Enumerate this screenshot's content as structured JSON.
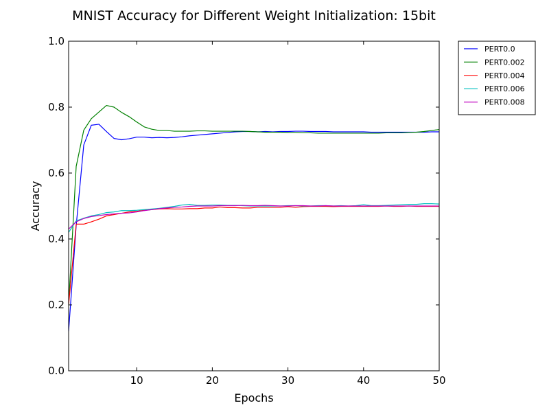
{
  "chart_data": {
    "type": "line",
    "title": "MNIST Accuracy for Different Weight Initialization: 15bit",
    "xlabel": "Epochs",
    "ylabel": "Accuracy",
    "xlim": [
      1,
      50
    ],
    "ylim": [
      0.0,
      1.0
    ],
    "xticks": [
      10,
      20,
      30,
      40,
      50
    ],
    "xtick_labels": [
      "10",
      "20",
      "30",
      "40",
      "50"
    ],
    "yticks": [
      0.0,
      0.2,
      0.4,
      0.6,
      0.8,
      1.0
    ],
    "ytick_labels": [
      "0.0",
      "0.2",
      "0.4",
      "0.6",
      "0.8",
      "1.0"
    ],
    "grid": false,
    "legend_position": "outside-top-right",
    "x": [
      1,
      2,
      3,
      4,
      5,
      6,
      7,
      8,
      9,
      10,
      11,
      12,
      13,
      14,
      15,
      16,
      17,
      18,
      19,
      20,
      21,
      22,
      23,
      24,
      25,
      26,
      27,
      28,
      29,
      30,
      31,
      32,
      33,
      34,
      35,
      36,
      37,
      38,
      39,
      40,
      41,
      42,
      43,
      44,
      45,
      46,
      47,
      48,
      49,
      50
    ],
    "series": [
      {
        "name": "PERT0.0",
        "color": "#0000ff",
        "values": [
          0.12,
          0.44,
          0.685,
          0.745,
          0.748,
          0.726,
          0.705,
          0.701,
          0.704,
          0.709,
          0.709,
          0.707,
          0.708,
          0.707,
          0.708,
          0.71,
          0.713,
          0.715,
          0.717,
          0.719,
          0.721,
          0.723,
          0.725,
          0.726,
          0.726,
          0.725,
          0.726,
          0.725,
          0.726,
          0.726,
          0.727,
          0.727,
          0.726,
          0.726,
          0.726,
          0.725,
          0.725,
          0.725,
          0.725,
          0.725,
          0.724,
          0.724,
          0.724,
          0.724,
          0.724,
          0.724,
          0.724,
          0.724,
          0.725,
          0.725
        ]
      },
      {
        "name": "PERT0.002",
        "color": "#008000",
        "values": [
          0.2,
          0.62,
          0.73,
          0.765,
          0.785,
          0.805,
          0.8,
          0.784,
          0.771,
          0.755,
          0.74,
          0.733,
          0.729,
          0.729,
          0.727,
          0.727,
          0.727,
          0.728,
          0.728,
          0.727,
          0.727,
          0.727,
          0.727,
          0.727,
          0.726,
          0.725,
          0.724,
          0.724,
          0.724,
          0.723,
          0.723,
          0.722,
          0.722,
          0.721,
          0.721,
          0.721,
          0.721,
          0.721,
          0.721,
          0.721,
          0.721,
          0.721,
          0.722,
          0.722,
          0.722,
          0.723,
          0.724,
          0.726,
          0.729,
          0.732
        ]
      },
      {
        "name": "PERT0.004",
        "color": "#ff0000",
        "values": [
          0.2,
          0.445,
          0.445,
          0.452,
          0.46,
          0.47,
          0.474,
          0.478,
          0.482,
          0.484,
          0.487,
          0.489,
          0.491,
          0.492,
          0.491,
          0.491,
          0.492,
          0.492,
          0.494,
          0.494,
          0.497,
          0.495,
          0.495,
          0.494,
          0.494,
          0.496,
          0.496,
          0.496,
          0.496,
          0.498,
          0.496,
          0.498,
          0.499,
          0.499,
          0.499,
          0.498,
          0.499,
          0.499,
          0.499,
          0.499,
          0.499,
          0.499,
          0.5,
          0.499,
          0.499,
          0.5,
          0.499,
          0.499,
          0.499,
          0.499
        ]
      },
      {
        "name": "PERT0.006",
        "color": "#00bfbf",
        "values": [
          0.42,
          0.455,
          0.463,
          0.47,
          0.474,
          0.48,
          0.482,
          0.486,
          0.486,
          0.487,
          0.489,
          0.491,
          0.493,
          0.496,
          0.499,
          0.503,
          0.505,
          0.502,
          0.502,
          0.503,
          0.503,
          0.502,
          0.502,
          0.501,
          0.5,
          0.5,
          0.5,
          0.5,
          0.5,
          0.501,
          0.501,
          0.5,
          0.5,
          0.501,
          0.501,
          0.5,
          0.501,
          0.5,
          0.501,
          0.504,
          0.501,
          0.501,
          0.502,
          0.503,
          0.504,
          0.505,
          0.505,
          0.507,
          0.507,
          0.506
        ]
      },
      {
        "name": "PERT0.008",
        "color": "#bf00bf",
        "values": [
          0.43,
          0.452,
          0.462,
          0.468,
          0.471,
          0.474,
          0.476,
          0.478,
          0.479,
          0.482,
          0.486,
          0.489,
          0.492,
          0.494,
          0.496,
          0.497,
          0.499,
          0.5,
          0.5,
          0.5,
          0.501,
          0.501,
          0.501,
          0.502,
          0.501,
          0.501,
          0.502,
          0.501,
          0.5,
          0.5,
          0.501,
          0.501,
          0.5,
          0.5,
          0.501,
          0.5,
          0.5,
          0.5,
          0.5,
          0.5,
          0.5,
          0.5,
          0.5,
          0.5,
          0.5,
          0.5,
          0.5,
          0.5,
          0.5,
          0.5
        ]
      }
    ]
  }
}
